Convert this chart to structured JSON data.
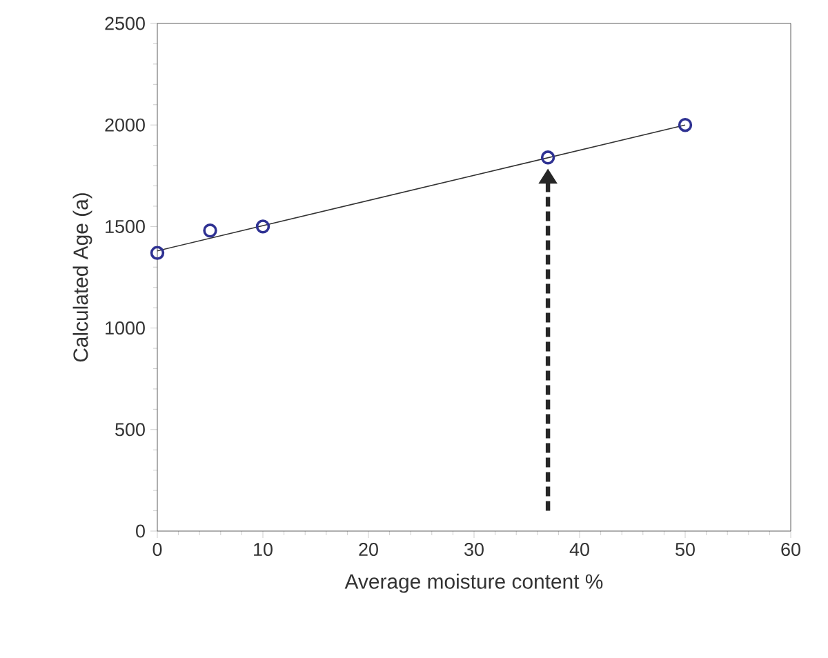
{
  "chart_data": {
    "type": "scatter",
    "xlabel": "Average moisture content %",
    "ylabel": "Calculated Age (a)",
    "x": [
      0,
      5,
      10,
      37,
      50
    ],
    "series": [
      {
        "color": "#2e3192",
        "marker": "circle",
        "values": [
          1370,
          1480,
          1500,
          1840,
          2000
        ]
      },
      {
        "type": "line",
        "color": "#333333",
        "x": [
          0,
          50
        ],
        "values": [
          1380,
          2000
        ],
        "marker": "none",
        "line_style": "solid"
      }
    ],
    "xlim": [
      0,
      60
    ],
    "ylim": [
      0,
      2500
    ],
    "xticks": [
      0,
      10,
      20,
      30,
      40,
      50,
      60
    ],
    "yticks": [
      0,
      500,
      1000,
      1500,
      2000,
      2500
    ],
    "grid": false
  }
}
